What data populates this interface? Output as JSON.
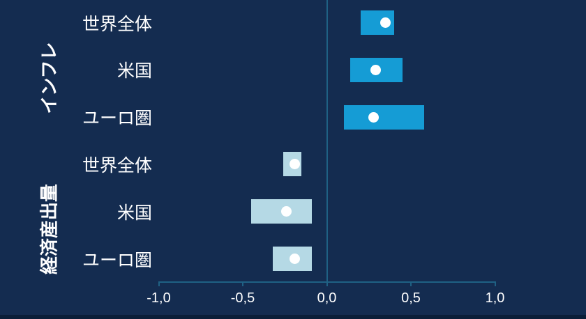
{
  "colors": {
    "background": "#142C50",
    "bottom_strip": "#0B1E38",
    "axis": "#1F6184",
    "text": "#FFFFFF",
    "inflation_bar_color": "#159CD5",
    "output_bar_color": "#B5D9E5",
    "dot": "#FFFFFF"
  },
  "chart_data": {
    "type": "bar",
    "subtype": "horizontal-range-bars-with-point-markers",
    "title": "",
    "xlabel": "",
    "ylabel": "",
    "x_axis": {
      "range": [
        -1.0,
        1.0
      ],
      "ticks": [
        -1.0,
        -0.5,
        0.0,
        0.5,
        1.0
      ],
      "tick_labels": [
        "-1,0",
        "-0,5",
        "0,0",
        "0,5",
        "1,0"
      ],
      "decimal_style": "comma",
      "grid": false
    },
    "legend": "none",
    "groups": [
      {
        "label": "インフレ",
        "bar_color": "#159CD5",
        "rows": [
          {
            "label": "世界全体",
            "range": [
              0.2,
              0.4
            ],
            "point": 0.35
          },
          {
            "label": "米国",
            "range": [
              0.14,
              0.45
            ],
            "point": 0.29
          },
          {
            "label": "ユーロ圏",
            "range": [
              0.1,
              0.58
            ],
            "point": 0.28
          }
        ]
      },
      {
        "label": "経済産出量",
        "bar_color": "#B5D9E5",
        "rows": [
          {
            "label": "世界全体",
            "range": [
              -0.26,
              -0.15
            ],
            "point": -0.19
          },
          {
            "label": "米国",
            "range": [
              -0.45,
              -0.09
            ],
            "point": -0.24
          },
          {
            "label": "ユーロ圏",
            "range": [
              -0.32,
              -0.09
            ],
            "point": -0.19
          }
        ]
      }
    ],
    "point_marker": {
      "shape": "circle",
      "color": "#FFFFFF"
    }
  }
}
